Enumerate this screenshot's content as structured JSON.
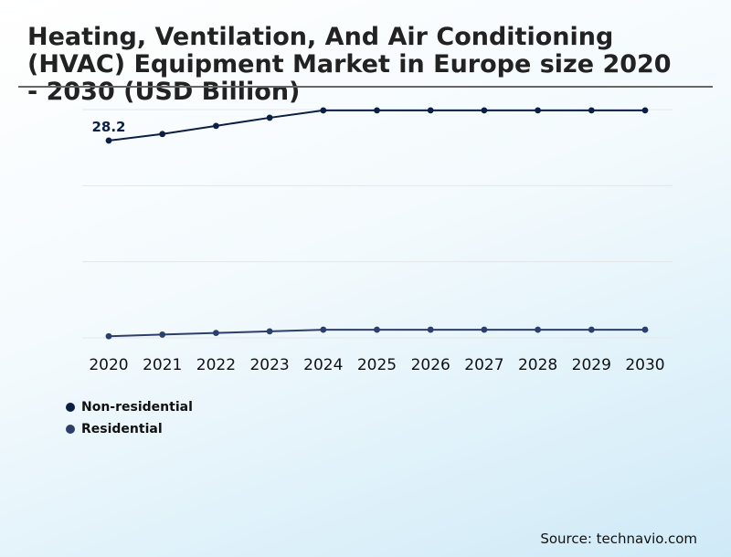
{
  "chart_data": {
    "type": "line",
    "title": "Heating, Ventilation, And Air Conditioning (HVAC) Equipment Market in Europe size 2020 - 2030 (USD Billion)",
    "x": [
      "2020",
      "2021",
      "2022",
      "2023",
      "2024",
      "2025",
      "2026",
      "2027",
      "2028",
      "2029",
      "2030"
    ],
    "series": [
      {
        "name": "Non-residential",
        "color": "#0b1f44",
        "values": [
          28.2,
          29.0,
          30.0,
          31.0,
          31.9,
          31.9,
          31.9,
          31.9,
          31.9,
          31.9,
          31.9
        ]
      },
      {
        "name": "Residential",
        "color": "#2c3e6b",
        "values": [
          4.2,
          4.4,
          4.6,
          4.8,
          5.0,
          5.0,
          5.0,
          5.0,
          5.0,
          5.0,
          5.0
        ]
      }
    ],
    "data_labels": [
      {
        "series": 0,
        "index": 0,
        "text": "28.2"
      }
    ],
    "ylim": [
      4.0,
      32.0
    ],
    "grid": true,
    "legend_position": "bottom-left",
    "source": "Source: technavio.com"
  }
}
